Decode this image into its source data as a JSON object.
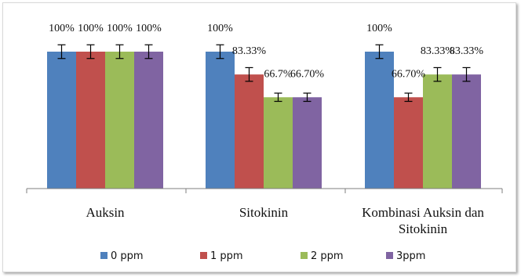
{
  "chart_data": {
    "type": "bar",
    "categories": [
      "Auksin",
      "Sitokinin",
      "Kombinasi Auksin dan Sitokinin"
    ],
    "category_lines": [
      [
        "Auksin"
      ],
      [
        "Sitokinin"
      ],
      [
        "Kombinasi Auksin dan",
        "Sitokinin"
      ]
    ],
    "series": [
      {
        "name": "0 ppm",
        "color": "#4F81BD",
        "values": [
          100,
          100,
          100
        ],
        "error": [
          5,
          5,
          5
        ],
        "labels": [
          "100%",
          "100%",
          "100%"
        ]
      },
      {
        "name": "1 ppm",
        "color": "#C0504D",
        "values": [
          100,
          83.33,
          66.7
        ],
        "error": [
          5,
          5,
          3
        ],
        "labels": [
          "100%",
          "83.33%",
          "66.70%"
        ]
      },
      {
        "name": "2 ppm",
        "color": "#9BBB59",
        "values": [
          100,
          66.7,
          83.33
        ],
        "error": [
          5,
          3,
          5
        ],
        "labels": [
          "100%",
          "66.7%",
          "83.33%"
        ]
      },
      {
        "name": "3ppm",
        "color": "#8064A2",
        "values": [
          100,
          66.7,
          83.33
        ],
        "error": [
          5,
          3,
          5
        ],
        "labels": [
          "100%",
          "66.70%",
          "83.33%"
        ]
      }
    ],
    "ylim": [
      0,
      130
    ],
    "grid": false,
    "legend": "bottom",
    "xlabel": "",
    "ylabel": "",
    "title": ""
  }
}
